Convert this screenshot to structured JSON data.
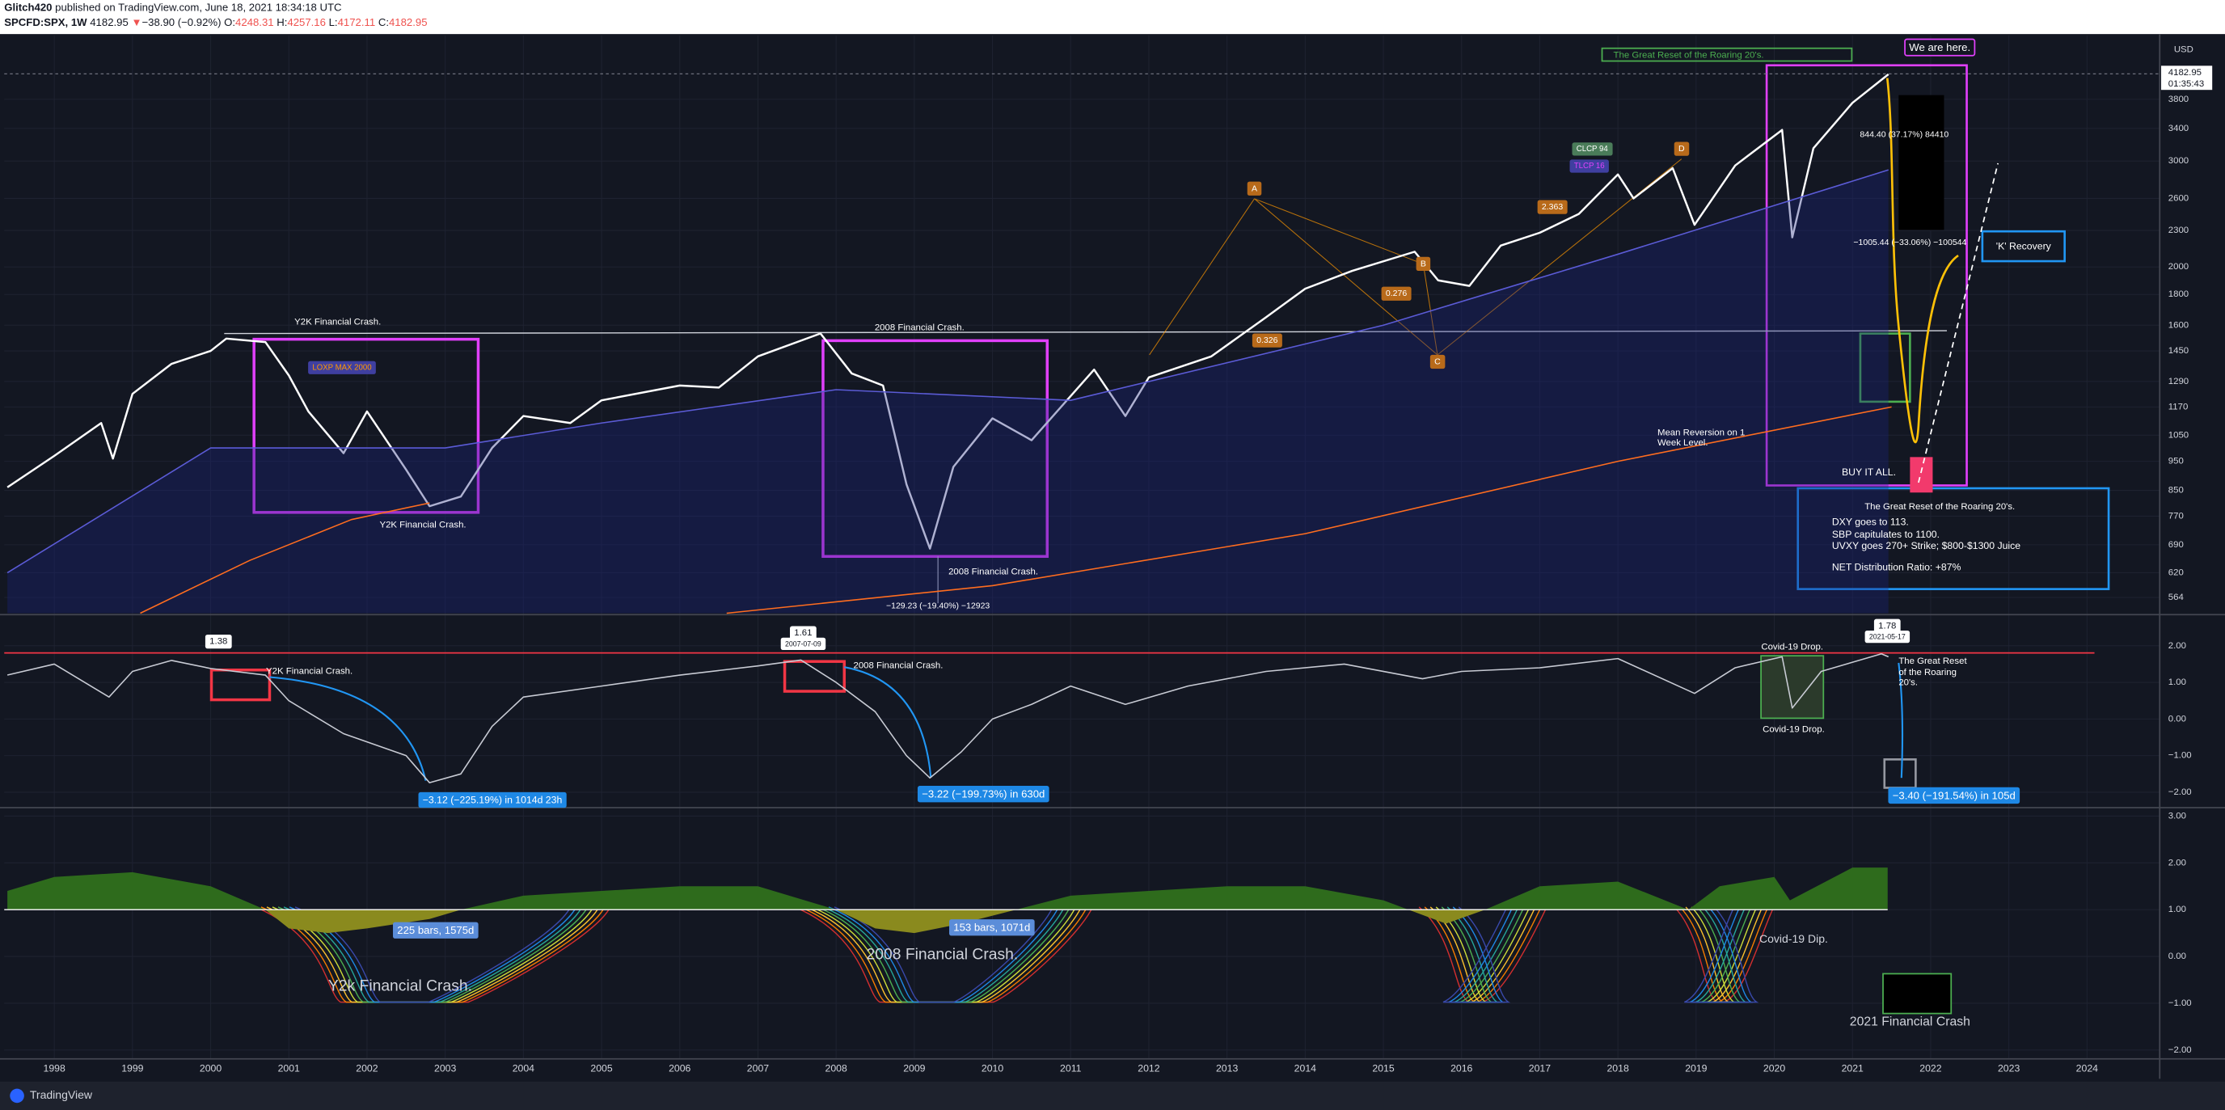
{
  "header": {
    "author": "Glitch420",
    "published": " published on TradingView.com, June 18, 2021 18:34:18 UTC",
    "symbol": "SPCFD:SPX, 1W",
    "last": "4182.95",
    "arrow": "▼",
    "change": "−38.90 (−0.92%)",
    "ohlc": [
      {
        "label": "O:",
        "value": "4248.31"
      },
      {
        "label": "H:",
        "value": "4257.16"
      },
      {
        "label": "L:",
        "value": "4172.11"
      },
      {
        "label": "C:",
        "value": "4182.95"
      }
    ]
  },
  "chart_data": [
    {
      "type": "line",
      "log_scale": true,
      "grid": true,
      "xlim": [
        1997.36,
        2024.93
      ],
      "xticks": [
        1998,
        1999,
        2000,
        2001,
        2002,
        2003,
        2004,
        2005,
        2006,
        2007,
        2008,
        2009,
        2010,
        2011,
        2012,
        2013,
        2014,
        2015,
        2016,
        2017,
        2018,
        2019,
        2020,
        2021,
        2022,
        2023,
        2024
      ],
      "ylim": [
        531,
        4853
      ],
      "yticks": [
        564,
        620,
        690,
        770,
        850,
        950,
        1050,
        1170,
        1290,
        1450,
        1600,
        1800,
        2000,
        2300,
        2600,
        3000,
        3400,
        3800
      ],
      "y_unit": "USD",
      "last_price": 4182.95,
      "countdown": "01:35:43",
      "series": [
        {
          "color": "#ffffff",
          "x": [
            1997.4,
            1998.0,
            1998.6,
            1998.75,
            1999.0,
            1999.5,
            2000.0,
            2000.2,
            2000.7,
            2001.0,
            2001.25,
            2001.7,
            2002.0,
            2002.5,
            2002.8,
            2003.2,
            2003.6,
            2004.0,
            2004.6,
            2005.0,
            2006.0,
            2006.5,
            2007.0,
            2007.8,
            2008.2,
            2008.6,
            2008.9,
            2009.2,
            2009.5,
            2010.0,
            2010.5,
            2011.3,
            2011.7,
            2012.0,
            2012.8,
            2013.5,
            2014.0,
            2014.6,
            2015.4,
            2015.7,
            2016.1,
            2016.5,
            2017.0,
            2017.5,
            2018.0,
            2018.2,
            2018.7,
            2018.98,
            2019.5,
            2020.1,
            2020.23,
            2020.5,
            2021.0,
            2021.46
          ],
          "values": [
            860,
            970,
            1100,
            960,
            1230,
            1380,
            1450,
            1520,
            1500,
            1320,
            1150,
            980,
            1150,
            920,
            800,
            830,
            1000,
            1130,
            1100,
            1200,
            1270,
            1260,
            1420,
            1550,
            1330,
            1270,
            870,
            680,
            930,
            1120,
            1030,
            1350,
            1130,
            1310,
            1420,
            1650,
            1840,
            1970,
            2120,
            1900,
            1860,
            2170,
            2280,
            2450,
            2850,
            2600,
            2920,
            2350,
            2950,
            3380,
            2240,
            3150,
            3750,
            4182.95
          ]
        },
        {
          "color": "#5b5bd6",
          "x": [
            1997.4,
            2000.0,
            2003.0,
            2005.0,
            2008.0,
            2011.0,
            2015.0,
            2018.0,
            2021.46
          ],
          "values": [
            620,
            1000,
            1000,
            1100,
            1250,
            1200,
            1600,
            2100,
            2900
          ]
        },
        {
          "color": "#ff6d1f",
          "x": [
            2006.6,
            2010.0,
            2014.0,
            2018.0,
            2021.5
          ],
          "values": [
            531,
            590,
            720,
            950,
            1170
          ]
        },
        {
          "color": "#ff6d1f",
          "x": [
            1999.1,
            2000.5,
            2001.8,
            2002.8
          ],
          "values": [
            531,
            650,
            760,
            810
          ]
        }
      ]
    },
    {
      "type": "line",
      "ylim": [
        -2.46,
        2.58
      ],
      "yticks": [
        {
          "value": 2,
          "label": "2.00"
        },
        {
          "value": 1,
          "label": "1.00"
        },
        {
          "value": 0,
          "label": "0.00"
        },
        {
          "value": -1,
          "label": "−1.00"
        },
        {
          "value": -2,
          "label": "−2.00"
        }
      ],
      "series": [
        {
          "color": "#c8cbd4",
          "x": [
            1997.4,
            1998.0,
            1998.7,
            1999.0,
            1999.5,
            2000.0,
            2000.7,
            2001.0,
            2001.7,
            2002.5,
            2002.8,
            2003.2,
            2003.6,
            2004.0,
            2005.0,
            2006.0,
            2007.0,
            2007.55,
            2008.0,
            2008.5,
            2008.9,
            2009.2,
            2009.6,
            2010.0,
            2010.5,
            2011.0,
            2011.7,
            2012.5,
            2013.5,
            2014.5,
            2015.5,
            2016.0,
            2017.0,
            2018.0,
            2018.98,
            2019.5,
            2020.1,
            2020.23,
            2020.6,
            2021.37,
            2021.46
          ],
          "values": [
            1.2,
            1.5,
            0.6,
            1.3,
            1.6,
            1.38,
            1.2,
            0.5,
            -0.4,
            -1.0,
            -1.74,
            -1.5,
            -0.2,
            0.6,
            0.9,
            1.2,
            1.45,
            1.61,
            1.0,
            0.2,
            -1.0,
            -1.61,
            -0.9,
            0.0,
            0.4,
            0.9,
            0.4,
            0.9,
            1.3,
            1.5,
            1.1,
            1.3,
            1.4,
            1.65,
            0.7,
            1.4,
            1.7,
            0.3,
            1.3,
            1.78,
            1.7
          ]
        }
      ]
    },
    {
      "type": "area",
      "baseline": 1,
      "ylim": [
        -2.19,
        3.15
      ],
      "yticks": [
        {
          "value": 3,
          "label": "3.00"
        },
        {
          "value": 2,
          "label": "2.00"
        },
        {
          "value": 1,
          "label": "1.00"
        },
        {
          "value": 0,
          "label": "0.00"
        },
        {
          "value": -1,
          "label": "−1.00"
        },
        {
          "value": -2,
          "label": "−2.00"
        }
      ],
      "series": [
        {
          "color": "#2e6b1c",
          "x": [
            1997.4,
            1998.0,
            1999.0,
            2000.0,
            2000.7,
            2001.0,
            2001.5,
            2002.0,
            2002.8,
            2003.2,
            2004.0,
            2005.0,
            2006.0,
            2007.0,
            2008.0,
            2008.5,
            2009.0,
            2009.6,
            2010.3,
            2011.0,
            2012.0,
            2013.0,
            2014.0,
            2015.0,
            2015.8,
            2016.3,
            2017.0,
            2018.0,
            2018.9,
            2019.3,
            2020.0,
            2020.2,
            2021.0,
            2021.45
          ],
          "values": [
            1.4,
            1.7,
            1.8,
            1.5,
            1.0,
            0.6,
            0.5,
            0.6,
            0.8,
            1.0,
            1.3,
            1.4,
            1.5,
            1.5,
            1.0,
            0.6,
            0.5,
            0.7,
            1.0,
            1.3,
            1.4,
            1.5,
            1.5,
            1.2,
            0.7,
            1.0,
            1.5,
            1.6,
            1.0,
            1.5,
            1.7,
            1.2,
            1.9,
            1.9
          ]
        }
      ]
    }
  ],
  "annotations": [
    {
      "text": "Y2K Financial Crash."
    },
    {
      "text": "Y2K Financial Crash."
    },
    {
      "text": "2008 Financial Crash."
    },
    {
      "text": "2008 Financial Crash."
    },
    {
      "text": "We are here."
    },
    {
      "text": "The Great Reset of the Roaring 20's."
    },
    {
      "text": "'K' Recovery"
    },
    {
      "text": "BUY IT ALL."
    },
    {
      "text": "Mean Reversion on 1"
    },
    {
      "text": "Week Level."
    },
    {
      "text": "The Great Reset of the Roaring 20's."
    },
    {
      "text": "DXY goes to 113."
    },
    {
      "text": "SBP capitulates to 1100."
    },
    {
      "text": "UVXY goes 270+ Strike; $800-$1300 Juice"
    },
    {
      "text": "NET Distribution Ratio:   +87%"
    },
    {
      "text": "LOXP MAX 2000"
    },
    {
      "text": "844.40 (37.17%) 84410"
    },
    {
      "text": "−1005.44 (−33.06%) −100544"
    },
    {
      "text": "−129.23 (−19.40%) −12923"
    },
    {
      "text": "Y2K Financial Crash."
    },
    {
      "text": "2008 Financial Crash."
    },
    {
      "text": "Covid-19 Drop."
    },
    {
      "text": "Covid-19 Drop."
    },
    {
      "text": "The Great Reset"
    },
    {
      "text": "of the Roaring"
    },
    {
      "text": "20's."
    },
    {
      "text": "−3.12 (−225.19%) in 1014d 23h"
    },
    {
      "text": "−3.22 (−199.73%) in 630d"
    },
    {
      "text": "−3.40 (−191.54%) in 105d"
    },
    {
      "text": "1.38"
    },
    {
      "text": "1.61"
    },
    {
      "text": "2007-07-09"
    },
    {
      "text": "1.78"
    },
    {
      "text": "2021-05-17"
    },
    {
      "text": "225 bars, 1575d"
    },
    {
      "text": "153 bars, 1071d"
    },
    {
      "text": "Y2k Financial Crash."
    },
    {
      "text": "2008 Financial Crash."
    },
    {
      "text": "Covid-19 Dip."
    },
    {
      "text": "2021 Financial Crash"
    },
    {
      "text": "CLCP 94"
    },
    {
      "text": "TLCP 16"
    },
    {
      "text": "A"
    },
    {
      "text": "B"
    },
    {
      "text": "C"
    },
    {
      "text": "D"
    },
    {
      "text": "2.363"
    },
    {
      "text": "0.276"
    },
    {
      "text": "0.326"
    }
  ],
  "footer": "TradingView"
}
